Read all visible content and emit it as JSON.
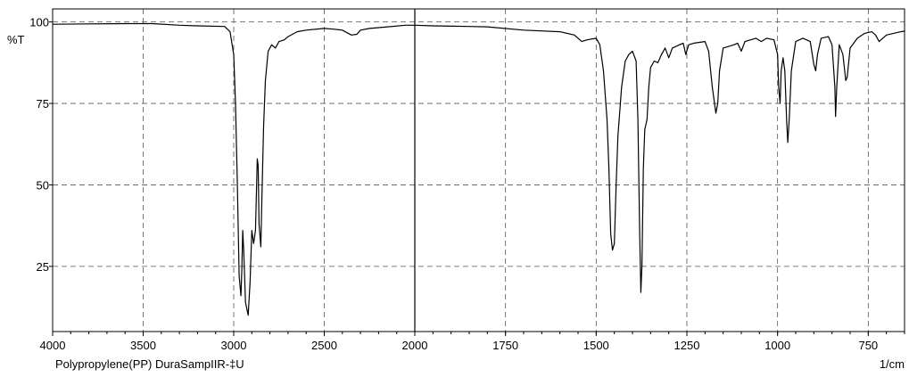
{
  "chart_data": {
    "type": "line",
    "ylabel": "%T",
    "xunit_label": "1/cm",
    "caption": "Polypropylene(PP)  DuraSampIIR-‡U",
    "xlim": [
      4000,
      650
    ],
    "ylim": [
      5,
      104
    ],
    "x_break": 2000,
    "grid": true,
    "y_ticks": [
      {
        "value": 100,
        "label": "100"
      },
      {
        "value": 75,
        "label": "75"
      },
      {
        "value": 50,
        "label": "50"
      },
      {
        "value": 25,
        "label": "25"
      }
    ],
    "x_ticks_left": [
      {
        "value": 4000,
        "label": "4000"
      },
      {
        "value": 3500,
        "label": "3500"
      },
      {
        "value": 3000,
        "label": "3000"
      },
      {
        "value": 2500,
        "label": "2500"
      },
      {
        "value": 2000,
        "label": "2000"
      }
    ],
    "x_ticks_right": [
      {
        "value": 1750,
        "label": "1750"
      },
      {
        "value": 1500,
        "label": "1500"
      },
      {
        "value": 1250,
        "label": "1250"
      },
      {
        "value": 1000,
        "label": "1000"
      },
      {
        "value": 750,
        "label": "750"
      }
    ],
    "series": [
      {
        "points": [
          [
            4000,
            99.3
          ],
          [
            3800,
            99.4
          ],
          [
            3600,
            99.5
          ],
          [
            3450,
            99.5
          ],
          [
            3300,
            99.0
          ],
          [
            3200,
            98.8
          ],
          [
            3050,
            98.6
          ],
          [
            3020,
            97.0
          ],
          [
            3000,
            90.0
          ],
          [
            2990,
            75.0
          ],
          [
            2980,
            50.0
          ],
          [
            2970,
            22.0
          ],
          [
            2960,
            16.0
          ],
          [
            2955,
            24.0
          ],
          [
            2950,
            36.0
          ],
          [
            2945,
            30.0
          ],
          [
            2935,
            14.0
          ],
          [
            2920,
            10.0
          ],
          [
            2910,
            20.0
          ],
          [
            2900,
            36.0
          ],
          [
            2890,
            32.0
          ],
          [
            2880,
            36.0
          ],
          [
            2870,
            58.0
          ],
          [
            2865,
            56.0
          ],
          [
            2860,
            38.0
          ],
          [
            2850,
            31.0
          ],
          [
            2845,
            45.0
          ],
          [
            2835,
            68.0
          ],
          [
            2825,
            82.0
          ],
          [
            2810,
            91.0
          ],
          [
            2790,
            93.0
          ],
          [
            2770,
            92.0
          ],
          [
            2750,
            94.0
          ],
          [
            2720,
            94.5
          ],
          [
            2700,
            95.5
          ],
          [
            2650,
            97.0
          ],
          [
            2600,
            97.5
          ],
          [
            2500,
            98.0
          ],
          [
            2450,
            97.8
          ],
          [
            2400,
            97.5
          ],
          [
            2350,
            96.0
          ],
          [
            2320,
            96.2
          ],
          [
            2300,
            97.5
          ],
          [
            2250,
            98.0
          ],
          [
            2150,
            98.5
          ],
          [
            2050,
            99.0
          ],
          [
            2000,
            99.0
          ],
          [
            1950,
            98.8
          ],
          [
            1850,
            98.6
          ],
          [
            1800,
            98.5
          ],
          [
            1700,
            97.5
          ],
          [
            1600,
            97.0
          ],
          [
            1560,
            96.0
          ],
          [
            1540,
            94.0
          ],
          [
            1525,
            94.5
          ],
          [
            1500,
            95.0
          ],
          [
            1490,
            93.0
          ],
          [
            1480,
            85.0
          ],
          [
            1470,
            70.0
          ],
          [
            1465,
            55.0
          ],
          [
            1460,
            35.0
          ],
          [
            1455,
            30.0
          ],
          [
            1450,
            32.0
          ],
          [
            1445,
            50.0
          ],
          [
            1440,
            65.0
          ],
          [
            1430,
            80.0
          ],
          [
            1420,
            88.0
          ],
          [
            1410,
            90.0
          ],
          [
            1400,
            91.0
          ],
          [
            1390,
            88.0
          ],
          [
            1385,
            70.0
          ],
          [
            1380,
            35.0
          ],
          [
            1377,
            17.0
          ],
          [
            1374,
            25.0
          ],
          [
            1370,
            55.0
          ],
          [
            1366,
            67.0
          ],
          [
            1360,
            70.0
          ],
          [
            1355,
            80.0
          ],
          [
            1350,
            86.0
          ],
          [
            1340,
            88.0
          ],
          [
            1330,
            87.5
          ],
          [
            1320,
            90.0
          ],
          [
            1310,
            92.0
          ],
          [
            1300,
            89.0
          ],
          [
            1290,
            92.0
          ],
          [
            1270,
            93.0
          ],
          [
            1260,
            93.5
          ],
          [
            1253,
            90.0
          ],
          [
            1245,
            93.0
          ],
          [
            1230,
            93.5
          ],
          [
            1200,
            94.0
          ],
          [
            1190,
            91.0
          ],
          [
            1180,
            80.0
          ],
          [
            1170,
            72.0
          ],
          [
            1165,
            75.0
          ],
          [
            1160,
            85.0
          ],
          [
            1150,
            92.0
          ],
          [
            1120,
            93.0
          ],
          [
            1110,
            93.5
          ],
          [
            1100,
            91.0
          ],
          [
            1090,
            94.0
          ],
          [
            1060,
            95.0
          ],
          [
            1045,
            94.0
          ],
          [
            1030,
            95.0
          ],
          [
            1010,
            94.5
          ],
          [
            1000,
            90.0
          ],
          [
            997,
            80.0
          ],
          [
            993,
            75.0
          ],
          [
            990,
            85.0
          ],
          [
            985,
            89.0
          ],
          [
            980,
            85.0
          ],
          [
            975,
            70.0
          ],
          [
            972,
            63.0
          ],
          [
            968,
            70.0
          ],
          [
            962,
            85.0
          ],
          [
            950,
            94.0
          ],
          [
            930,
            95.0
          ],
          [
            910,
            94.0
          ],
          [
            900,
            87.0
          ],
          [
            895,
            85.0
          ],
          [
            890,
            90.0
          ],
          [
            880,
            95.0
          ],
          [
            860,
            95.5
          ],
          [
            850,
            93.0
          ],
          [
            842,
            80.0
          ],
          [
            840,
            71.0
          ],
          [
            837,
            80.0
          ],
          [
            830,
            93.0
          ],
          [
            820,
            90.0
          ],
          [
            812,
            82.0
          ],
          [
            808,
            83.0
          ],
          [
            800,
            92.0
          ],
          [
            780,
            95.0
          ],
          [
            760,
            96.5
          ],
          [
            740,
            97.0
          ],
          [
            730,
            96.0
          ],
          [
            720,
            94.0
          ],
          [
            710,
            95.0
          ],
          [
            700,
            96.0
          ],
          [
            680,
            96.5
          ],
          [
            660,
            97.0
          ],
          [
            650,
            97.2
          ]
        ]
      }
    ]
  }
}
